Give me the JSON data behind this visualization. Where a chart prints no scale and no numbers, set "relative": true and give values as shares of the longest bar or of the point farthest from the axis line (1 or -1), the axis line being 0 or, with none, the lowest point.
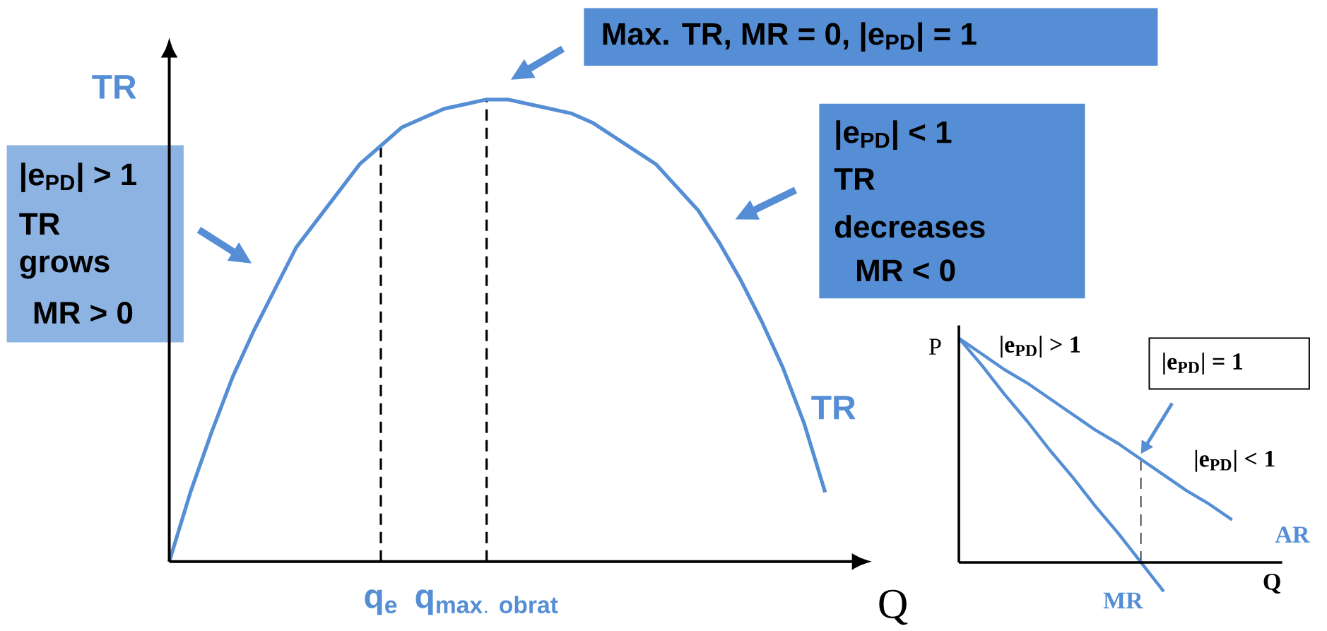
{
  "chart_data": [
    {
      "type": "line",
      "relative": true,
      "ylabel": "TR",
      "xlabel": "Q",
      "categories": [
        null,
        null,
        null,
        null,
        null,
        null,
        null,
        null,
        null,
        null,
        "\\mathbf{q}_{\\mathbf{e}}",
        null,
        null,
        null,
        null,
        "\\mathbf{q}_{\\mathbf{max.\\ obrat}}",
        null,
        null,
        null,
        null,
        null,
        null,
        null,
        null,
        null,
        null,
        null,
        null,
        null,
        null,
        null,
        null
      ],
      "series": [
        {
          "name": "TR",
          "color": "#558ed5",
          "values": [
            0,
            0.15,
            0.28,
            0.4,
            0.5,
            0.59,
            0.68,
            0.74,
            0.8,
            0.86,
            0.9,
            0.94,
            0.96,
            0.98,
            0.99,
            1,
            1,
            0.99,
            0.98,
            0.97,
            0.95,
            0.92,
            0.89,
            0.86,
            0.81,
            0.76,
            0.69,
            0.61,
            0.52,
            0.42,
            0.3,
            0.15
          ]
        }
      ],
      "annotations": [
        "Max. TR, MR = 0, |e$_{PD}$| = 1",
        "|e$_{PD}$| < 1",
        "TR",
        "decreases",
        "MR < 0",
        "|e$_{PD}$| > 1",
        "TR",
        "grows",
        "MR  > 0"
      ]
    },
    {
      "type": "line",
      "relative": true,
      "ylabel": "P",
      "xlabel": "Q",
      "categories": [
        null,
        null,
        null,
        null,
        null,
        null,
        null,
        null,
        null,
        null,
        null,
        null,
        null
      ],
      "series": [
        {
          "name": "AR",
          "color": "#558ed5",
          "values": [
            1,
            0.93,
            0.86,
            0.8,
            0.73,
            0.66,
            0.59,
            0.53,
            0.46,
            0.39,
            0.32,
            0.26,
            0.19
          ]
        },
        {
          "name": "MR",
          "color": "#558ed5",
          "values": [
            1,
            0.88,
            0.75,
            0.63,
            0.5,
            0.38,
            0.25,
            0.13,
            0,
            -0.13,
            null,
            null,
            null
          ]
        }
      ],
      "annotations": [
        "|e$_{PD}$| > 1",
        "|e$_{PD}$| = 1",
        "|e$_{PD}$| < 1"
      ]
    }
  ]
}
